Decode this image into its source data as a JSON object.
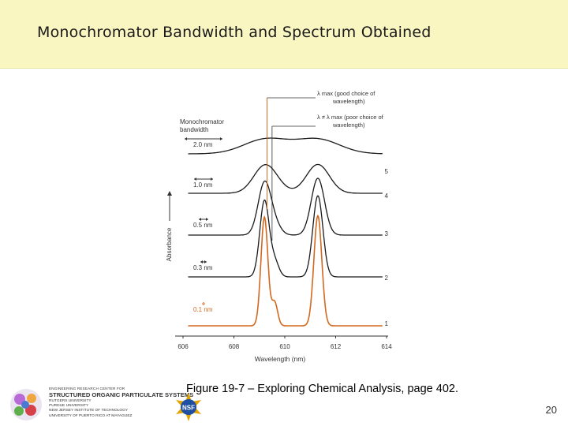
{
  "slide": {
    "title": "Monochromator Bandwidth and Spectrum Obtained",
    "caption": "Figure 19-7 – Exploring Chemical Analysis, page 402.",
    "page_number": "20"
  },
  "logo": {
    "line1": "ENGINEERING RESEARCH CENTER FOR",
    "line2": "STRUCTURED ORGANIC PARTICULATE SYSTEMS",
    "members": [
      "RUTGERS UNIVERSITY",
      "PURDUE UNIVERSITY",
      "NEW JERSEY INSTITUTE OF TECHNOLOGY",
      "UNIVERSITY OF PUERTO RICO AT MAYAGUEZ"
    ],
    "nsf_text": "NSF"
  },
  "chart_data": {
    "type": "line",
    "xlabel": "Wavelength (nm)",
    "ylabel": "Absorbance",
    "xlim": [
      606,
      614
    ],
    "x_ticks": [
      "606",
      "608",
      "610",
      "612",
      "614"
    ],
    "bandwidth_header": [
      "Monochromator",
      "bandwidth"
    ],
    "series": [
      {
        "name": "1",
        "bandwidth": "0.1 nm",
        "color": "#d2691e"
      },
      {
        "name": "2",
        "bandwidth": "0.3 nm",
        "color": "#1a1a1a"
      },
      {
        "name": "3",
        "bandwidth": "0.5 nm",
        "color": "#1a1a1a"
      },
      {
        "name": "4",
        "bandwidth": "1.0 nm",
        "color": "#1a1a1a"
      },
      {
        "name": "5",
        "bandwidth": "2.0 nm",
        "color": "#1a1a1a"
      }
    ],
    "annotations": {
      "lambda_max_good": {
        "wavelength": 609.3,
        "lines": [
          "λ max (good choice of",
          "wavelength)"
        ]
      },
      "lambda_poor": {
        "wavelength": 609.5,
        "lines": [
          "λ ≠ λ max (poor choice of",
          "wavelength)"
        ]
      }
    },
    "accent_color": "#d2691e"
  }
}
